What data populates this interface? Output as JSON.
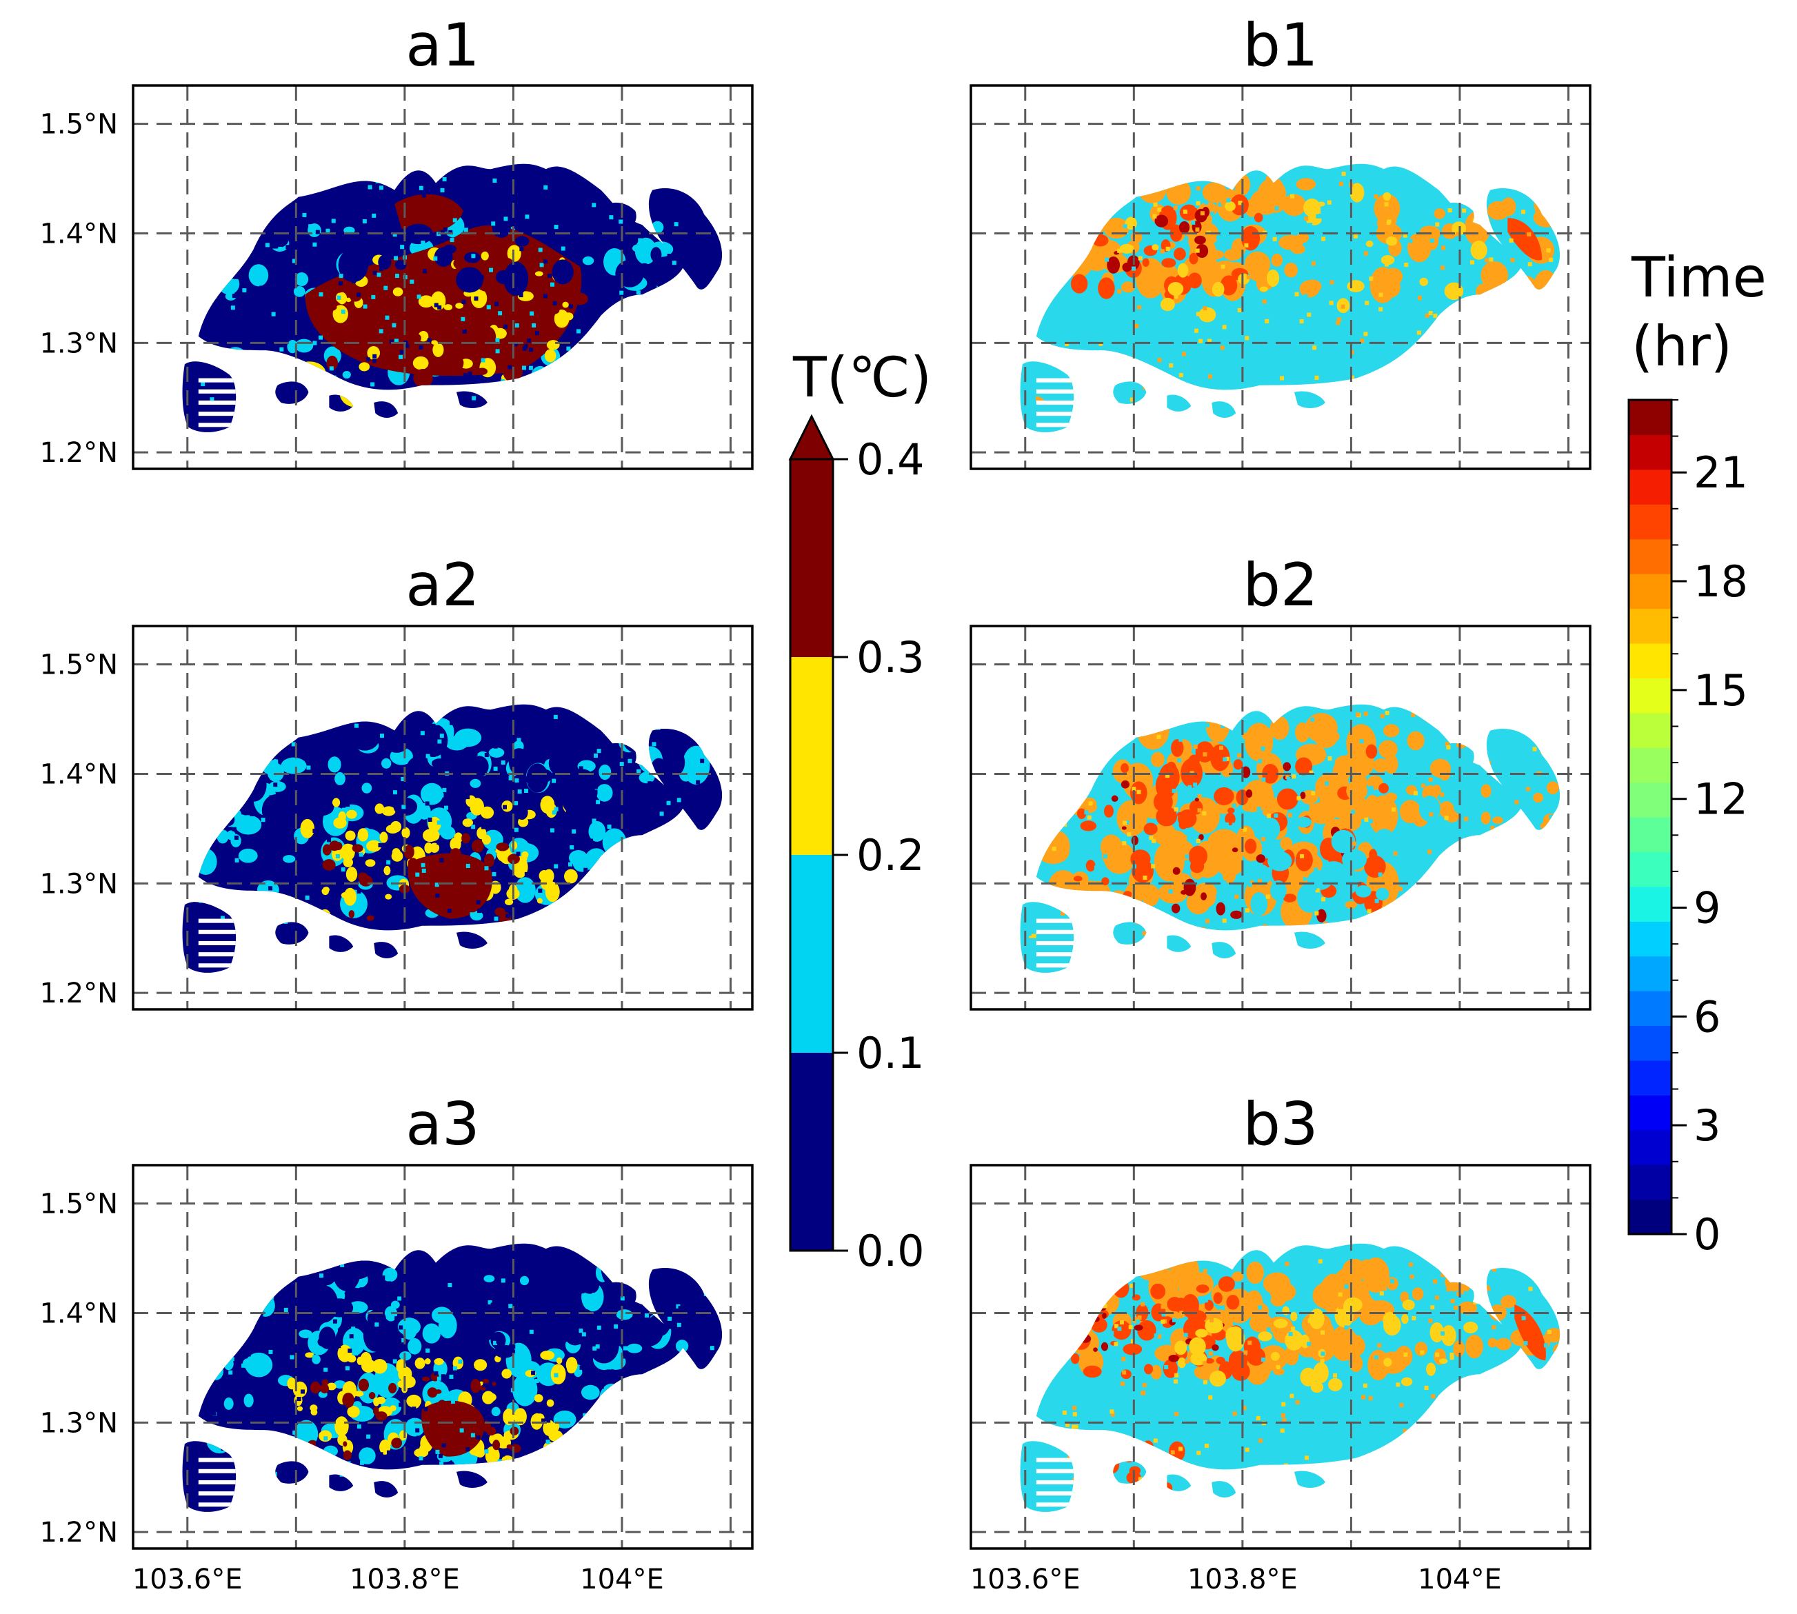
{
  "panels": [
    {
      "id": "a1",
      "title": "a1",
      "kind": "temperature",
      "zones": {
        "maroon": "central-east interior",
        "yellow": "fringe of maroon core",
        "cyan": "scattered / west",
        "navy": "most of island"
      }
    },
    {
      "id": "a2",
      "title": "a2",
      "kind": "temperature",
      "zones": {
        "maroon": "south-central core",
        "yellow": "central belt",
        "cyan": "west & east",
        "navy": "north & edges"
      }
    },
    {
      "id": "a3",
      "title": "a3",
      "kind": "temperature",
      "zones": {
        "maroon": "south-central small core",
        "yellow": "central belt",
        "cyan": "west",
        "navy": "north & east"
      }
    },
    {
      "id": "b1",
      "title": "b1",
      "kind": "time",
      "zones": {
        "cyan": "central & south",
        "orange": "north & west rim",
        "red": "patches north-west & east"
      }
    },
    {
      "id": "b2",
      "title": "b2",
      "kind": "time",
      "zones": {
        "orange": "west & north",
        "red": "interior patches",
        "cyan": "east & south-east"
      }
    },
    {
      "id": "b3",
      "title": "b3",
      "kind": "time",
      "zones": {
        "cyan": "central & south",
        "orange": "north & west",
        "red": "north-west & east tip"
      }
    }
  ],
  "axes": {
    "lon_ticks": [
      "103.6°E",
      "103.8°E",
      "104°E"
    ],
    "lat_ticks": [
      "1.5°N",
      "1.4°N",
      "1.3°N",
      "1.2°N"
    ],
    "lon_values": [
      103.6,
      103.8,
      104.0
    ],
    "lat_values": [
      1.5,
      1.4,
      1.3,
      1.2
    ],
    "lon_range": [
      103.55,
      104.12
    ],
    "lat_range": [
      1.185,
      1.535
    ]
  },
  "temp_colorbar": {
    "label": "T(℃)",
    "ticks": [
      "0.0",
      "0.1",
      "0.2",
      "0.3",
      "0.4"
    ],
    "tick_values": [
      0.0,
      0.1,
      0.2,
      0.3,
      0.4
    ],
    "extend": "max",
    "levels": [
      {
        "from": 0.0,
        "to": 0.1,
        "color": "#000080"
      },
      {
        "from": 0.1,
        "to": 0.2,
        "color": "#00d4f2"
      },
      {
        "from": 0.2,
        "to": 0.3,
        "color": "#ffe500"
      },
      {
        "from": 0.3,
        "to": 0.4,
        "color": "#7f0000"
      }
    ],
    "extend_color": "#7f0000"
  },
  "time_colorbar": {
    "label_line1": "Time",
    "label_line2": "(hr)",
    "ticks": [
      "0",
      "3",
      "6",
      "9",
      "12",
      "15",
      "18",
      "21"
    ],
    "tick_values": [
      0,
      3,
      6,
      9,
      12,
      15,
      18,
      21
    ],
    "range": [
      0,
      23
    ],
    "colors": [
      "#00007f",
      "#0000a5",
      "#0000d0",
      "#0000f6",
      "#0025ff",
      "#0050ff",
      "#007bff",
      "#00a7ff",
      "#00cfff",
      "#1af4e4",
      "#3bffbd",
      "#5dff99",
      "#7fff7a",
      "#99ff5e",
      "#bbff3b",
      "#e4ff1a",
      "#ffe500",
      "#ffbc00",
      "#ff9600",
      "#ff6e00",
      "#ff4400",
      "#f61e00",
      "#c40000",
      "#8f0000"
    ]
  },
  "colors": {
    "navy": "#000080",
    "cyan": "#00d4f2",
    "yellow": "#ffe500",
    "maroon": "#7f0000",
    "time_cyan": "#29d8ea",
    "time_orange": "#ffa21a",
    "time_red": "#ff4400",
    "time_darkred": "#b00000",
    "time_yellow": "#ffd21a"
  }
}
